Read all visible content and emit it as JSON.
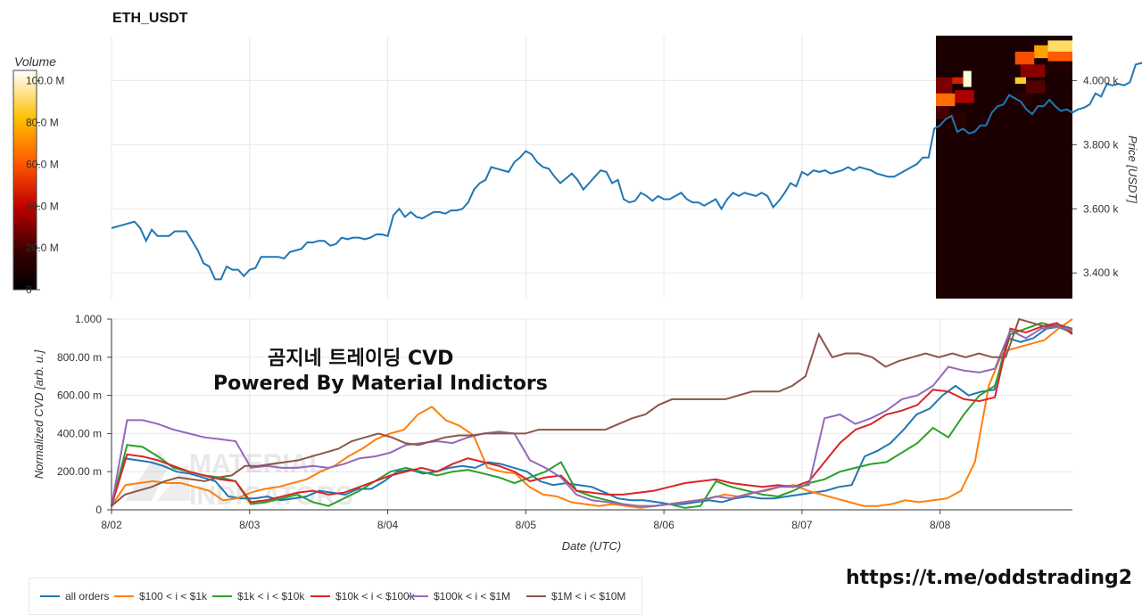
{
  "title": "ETH_USDT",
  "overlay": {
    "line1": "곰지네 트레이딩 CVD",
    "line2": "Powered By Material Indictors"
  },
  "watermark": {
    "line1": "MATERIAL",
    "line2": "INDICATORS"
  },
  "url_text": "https://t.me/oddstrading2",
  "colorbar": {
    "title": "Volume",
    "ticks": [
      "100.0 M",
      "80.0 M",
      "60.0 M",
      "40.0 M",
      "20.0 M",
      "0"
    ],
    "values": [
      100,
      80,
      60,
      40,
      20,
      0
    ]
  },
  "chart_data": [
    {
      "type": "line",
      "name": "price",
      "ylabel": "Price [USDT]",
      "ylim": [
        3320,
        4140
      ],
      "yticks": [
        3400,
        3600,
        3800,
        4000
      ],
      "ytick_labels": [
        "3.400 k",
        "3.600 k",
        "3.800 k",
        "4.000 k"
      ],
      "grid": true,
      "x_start": "8/02 00:00",
      "x_step_hours": 1,
      "y": [
        3540,
        3545,
        3550,
        3555,
        3560,
        3540,
        3500,
        3535,
        3515,
        3515,
        3515,
        3530,
        3530,
        3530,
        3500,
        3470,
        3430,
        3420,
        3380,
        3380,
        3420,
        3410,
        3410,
        3390,
        3410,
        3415,
        3450,
        3450,
        3450,
        3450,
        3445,
        3465,
        3470,
        3475,
        3495,
        3495,
        3500,
        3500,
        3485,
        3490,
        3510,
        3505,
        3510,
        3510,
        3505,
        3510,
        3520,
        3520,
        3515,
        3580,
        3600,
        3575,
        3590,
        3575,
        3570,
        3580,
        3590,
        3590,
        3585,
        3595,
        3595,
        3600,
        3620,
        3660,
        3680,
        3690,
        3730,
        3725,
        3720,
        3715,
        3745,
        3760,
        3780,
        3770,
        3745,
        3730,
        3725,
        3700,
        3680,
        3695,
        3710,
        3690,
        3660,
        3680,
        3700,
        3720,
        3715,
        3680,
        3690,
        3630,
        3620,
        3625,
        3650,
        3640,
        3625,
        3640,
        3630,
        3630,
        3640,
        3650,
        3630,
        3620,
        3620,
        3610,
        3620,
        3630,
        3600,
        3630,
        3650,
        3640,
        3650,
        3645,
        3640,
        3650,
        3640,
        3605,
        3625,
        3650,
        3680,
        3670,
        3715,
        3705,
        3720,
        3715,
        3720,
        3710,
        3715,
        3720,
        3730,
        3720,
        3730,
        3725,
        3720,
        3710,
        3705,
        3700,
        3700,
        3710,
        3720,
        3730,
        3740,
        3760,
        3760,
        3850,
        3860,
        3880,
        3890,
        3840,
        3850,
        3835,
        3840,
        3860,
        3860,
        3900,
        3920,
        3925,
        3955,
        3945,
        3935,
        3910,
        3895,
        3920,
        3920,
        3940,
        3920,
        3905,
        3910,
        3900,
        3910,
        3915,
        3925,
        3960,
        3950,
        3990,
        3985,
        3990,
        3985,
        3995,
        4050,
        4055,
        4040,
        4030,
        4020,
        4010,
        3995
      ]
    },
    {
      "type": "line",
      "name": "cvd",
      "xlabel": "Date (UTC)",
      "ylabel": "Normalized CVD [arb. u.]",
      "ylim": [
        0,
        1
      ],
      "yticks": [
        0,
        0.2,
        0.4,
        0.6,
        0.8,
        1.0
      ],
      "ytick_labels": [
        "0",
        "200.00 m",
        "400.00 m",
        "600.00 m",
        "800.00 m",
        "1.000"
      ],
      "xticks": [
        0,
        24,
        48,
        72,
        96,
        120,
        144
      ],
      "xtick_labels": [
        "8/02",
        "8/03",
        "8/04",
        "8/05",
        "8/06",
        "8/07",
        "8/08"
      ],
      "x_start": "8/02 00:00",
      "x_step_hours": 2,
      "legend_position": "bottom",
      "series": [
        {
          "name": "all orders",
          "color": "#1f77b4",
          "values": [
            0.02,
            0.27,
            0.26,
            0.25,
            0.23,
            0.2,
            0.19,
            0.17,
            0.15,
            0.07,
            0.06,
            0.06,
            0.07,
            0.05,
            0.06,
            0.07,
            0.1,
            0.09,
            0.08,
            0.11,
            0.11,
            0.15,
            0.2,
            0.21,
            0.19,
            0.2,
            0.22,
            0.23,
            0.22,
            0.25,
            0.24,
            0.22,
            0.2,
            0.15,
            0.13,
            0.14,
            0.13,
            0.12,
            0.09,
            0.06,
            0.05,
            0.05,
            0.04,
            0.03,
            0.03,
            0.04,
            0.05,
            0.04,
            0.06,
            0.07,
            0.06,
            0.06,
            0.07,
            0.08,
            0.09,
            0.1,
            0.12,
            0.13,
            0.28,
            0.31,
            0.35,
            0.42,
            0.5,
            0.53,
            0.6,
            0.65,
            0.6,
            0.62,
            0.63,
            0.9,
            0.88,
            0.9,
            0.95,
            0.96,
            0.94
          ]
        },
        {
          "name": "$100 < i < $1k",
          "color": "#ff7f0e",
          "values": [
            0.02,
            0.13,
            0.14,
            0.15,
            0.14,
            0.14,
            0.12,
            0.1,
            0.05,
            0.06,
            0.09,
            0.11,
            0.12,
            0.14,
            0.16,
            0.2,
            0.23,
            0.28,
            0.32,
            0.37,
            0.4,
            0.42,
            0.5,
            0.54,
            0.47,
            0.44,
            0.39,
            0.22,
            0.2,
            0.19,
            0.12,
            0.08,
            0.07,
            0.04,
            0.03,
            0.02,
            0.03,
            0.02,
            0.01,
            0.02,
            0.03,
            0.04,
            0.05,
            0.06,
            0.08,
            0.07,
            0.09,
            0.1,
            0.12,
            0.13,
            0.1,
            0.08,
            0.06,
            0.04,
            0.02,
            0.02,
            0.03,
            0.05,
            0.04,
            0.05,
            0.06,
            0.1,
            0.25,
            0.65,
            0.83,
            0.85,
            0.87,
            0.89,
            0.95,
            1.0
          ]
        },
        {
          "name": "$1k < i < $10k",
          "color": "#2ca02c",
          "values": [
            0.02,
            0.34,
            0.33,
            0.28,
            0.22,
            0.2,
            0.18,
            0.17,
            0.15,
            0.03,
            0.04,
            0.06,
            0.08,
            0.04,
            0.02,
            0.06,
            0.1,
            0.15,
            0.2,
            0.22,
            0.2,
            0.18,
            0.2,
            0.21,
            0.19,
            0.17,
            0.14,
            0.17,
            0.2,
            0.25,
            0.1,
            0.07,
            0.05,
            0.03,
            0.02,
            0.02,
            0.03,
            0.01,
            0.02,
            0.15,
            0.12,
            0.1,
            0.08,
            0.07,
            0.1,
            0.14,
            0.16,
            0.2,
            0.22,
            0.24,
            0.25,
            0.3,
            0.35,
            0.43,
            0.38,
            0.5,
            0.6,
            0.65,
            0.92,
            0.95,
            0.98,
            0.96,
            0.93
          ]
        },
        {
          "name": "$10k < i < $100k",
          "color": "#d62728",
          "values": [
            0.02,
            0.29,
            0.28,
            0.26,
            0.23,
            0.2,
            0.18,
            0.16,
            0.15,
            0.04,
            0.05,
            0.07,
            0.09,
            0.1,
            0.08,
            0.09,
            0.12,
            0.15,
            0.18,
            0.2,
            0.22,
            0.2,
            0.24,
            0.27,
            0.25,
            0.23,
            0.2,
            0.15,
            0.17,
            0.18,
            0.1,
            0.09,
            0.08,
            0.08,
            0.09,
            0.1,
            0.12,
            0.14,
            0.15,
            0.16,
            0.14,
            0.13,
            0.12,
            0.13,
            0.12,
            0.15,
            0.25,
            0.35,
            0.42,
            0.45,
            0.5,
            0.52,
            0.55,
            0.63,
            0.62,
            0.58,
            0.57,
            0.59,
            0.95,
            0.93,
            0.96,
            0.98,
            0.92
          ]
        },
        {
          "name": "$100k < i < $1M",
          "color": "#9467bd",
          "values": [
            0.02,
            0.47,
            0.47,
            0.45,
            0.42,
            0.4,
            0.38,
            0.37,
            0.36,
            0.22,
            0.23,
            0.22,
            0.22,
            0.23,
            0.22,
            0.24,
            0.27,
            0.28,
            0.3,
            0.34,
            0.35,
            0.36,
            0.35,
            0.38,
            0.4,
            0.41,
            0.4,
            0.26,
            0.22,
            0.17,
            0.08,
            0.05,
            0.04,
            0.03,
            0.02,
            0.02,
            0.03,
            0.04,
            0.05,
            0.07,
            0.06,
            0.08,
            0.1,
            0.12,
            0.12,
            0.13,
            0.48,
            0.5,
            0.45,
            0.48,
            0.52,
            0.58,
            0.6,
            0.65,
            0.75,
            0.73,
            0.72,
            0.74,
            0.94,
            0.9,
            0.95,
            0.96,
            0.94
          ]
        },
        {
          "name": "$1M < i < $10M",
          "color": "#8c564b",
          "values": [
            0.02,
            0.08,
            0.1,
            0.12,
            0.15,
            0.17,
            0.16,
            0.15,
            0.17,
            0.18,
            0.23,
            0.23,
            0.24,
            0.25,
            0.26,
            0.28,
            0.3,
            0.32,
            0.36,
            0.38,
            0.4,
            0.38,
            0.35,
            0.34,
            0.36,
            0.38,
            0.39,
            0.39,
            0.4,
            0.4,
            0.4,
            0.4,
            0.42,
            0.42,
            0.42,
            0.42,
            0.42,
            0.42,
            0.45,
            0.48,
            0.5,
            0.55,
            0.58,
            0.58,
            0.58,
            0.58,
            0.58,
            0.6,
            0.62,
            0.62,
            0.62,
            0.65,
            0.7,
            0.92,
            0.8,
            0.82,
            0.82,
            0.8,
            0.75,
            0.78,
            0.8,
            0.82,
            0.8,
            0.82,
            0.8,
            0.82,
            0.8,
            0.8,
            1.0,
            0.98,
            0.96,
            0.97,
            0.95
          ]
        }
      ]
    },
    {
      "type": "heatmap",
      "name": "orderbook-volume",
      "note": "order book liquidity by price level over the last ~2 days; values in M",
      "cells": [
        {
          "t0": 0.0,
          "t1": 0.12,
          "p0": 3960,
          "p1": 4010,
          "v": 28
        },
        {
          "t0": 0.12,
          "t1": 0.2,
          "p0": 3990,
          "p1": 4010,
          "v": 45
        },
        {
          "t0": 0.2,
          "t1": 0.26,
          "p0": 3980,
          "p1": 4030,
          "v": 100
        },
        {
          "t0": 0.0,
          "t1": 0.14,
          "p0": 3920,
          "p1": 3960,
          "v": 62
        },
        {
          "t0": 0.14,
          "t1": 0.28,
          "p0": 3930,
          "p1": 3970,
          "v": 35
        },
        {
          "t0": 0.0,
          "t1": 0.1,
          "p0": 3880,
          "p1": 3920,
          "v": 20
        },
        {
          "t0": 0.1,
          "t1": 0.22,
          "p0": 3860,
          "p1": 3900,
          "v": 14
        },
        {
          "t0": 0.0,
          "t1": 0.26,
          "p0": 3820,
          "p1": 3860,
          "v": 9
        },
        {
          "t0": 0.58,
          "t1": 0.72,
          "p0": 4050,
          "p1": 4090,
          "v": 55
        },
        {
          "t0": 0.72,
          "t1": 0.82,
          "p0": 4070,
          "p1": 4110,
          "v": 72
        },
        {
          "t0": 0.82,
          "t1": 1.0,
          "p0": 4090,
          "p1": 4125,
          "v": 88
        },
        {
          "t0": 0.82,
          "t1": 1.0,
          "p0": 4060,
          "p1": 4090,
          "v": 58
        },
        {
          "t0": 0.62,
          "t1": 0.8,
          "p0": 4010,
          "p1": 4050,
          "v": 30
        },
        {
          "t0": 0.58,
          "t1": 0.66,
          "p0": 3990,
          "p1": 4010,
          "v": 82
        },
        {
          "t0": 0.66,
          "t1": 0.8,
          "p0": 3960,
          "p1": 4000,
          "v": 22
        },
        {
          "t0": 0.56,
          "t1": 0.7,
          "p0": 3920,
          "p1": 3960,
          "v": 12
        },
        {
          "t0": 0.8,
          "t1": 1.0,
          "p0": 4020,
          "p1": 4060,
          "v": 10
        }
      ]
    }
  ],
  "legend": [
    {
      "label": "all orders",
      "color": "#1f77b4"
    },
    {
      "label": "$100 < i < $1k",
      "color": "#ff7f0e"
    },
    {
      "label": "$1k < i < $10k",
      "color": "#2ca02c"
    },
    {
      "label": "$10k < i < $100k",
      "color": "#d62728"
    },
    {
      "label": "$100k < i < $1M",
      "color": "#9467bd"
    },
    {
      "label": "$1M < i < $10M",
      "color": "#8c564b"
    }
  ]
}
